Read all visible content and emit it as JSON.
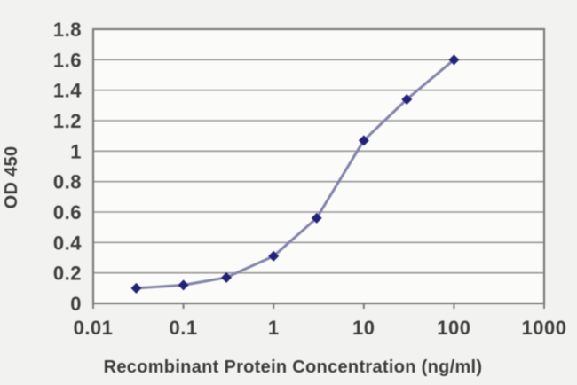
{
  "figure": {
    "background": "#f2f2f0"
  },
  "chart_data": {
    "type": "line",
    "title": "",
    "xlabel": "Recombinant Protein Concentration (ng/ml)",
    "ylabel": "OD 450",
    "x_scale": "log",
    "xlim": [
      0.01,
      1000
    ],
    "ylim": [
      0,
      1.8
    ],
    "x_tick_values": [
      0.01,
      0.1,
      1,
      10,
      100,
      1000
    ],
    "x_tick_labels": [
      "0.01",
      "0.1",
      "1",
      "10",
      "100",
      "1000"
    ],
    "y_tick_values": [
      0,
      0.2,
      0.4,
      0.6,
      0.8,
      1,
      1.2,
      1.4,
      1.6,
      1.8
    ],
    "y_tick_labels": [
      "0",
      "0.2",
      "0.4",
      "0.6",
      "0.8",
      "1",
      "1.2",
      "1.4",
      "1.6",
      "1.8"
    ],
    "grid": "horizontal",
    "legend": "none",
    "series": [
      {
        "name": "OD 450",
        "marker": "diamond",
        "x": [
          0.03,
          0.1,
          0.3,
          1,
          3,
          10,
          30,
          100
        ],
        "y": [
          0.1,
          0.12,
          0.17,
          0.31,
          0.56,
          1.07,
          1.34,
          1.6
        ],
        "line_color": "#8384ab",
        "marker_color": "#22227a"
      }
    ],
    "colors": {
      "grid": "#969696",
      "axis": "#7d7d7d",
      "text": "#3e3e3e",
      "plot_bg": "#fbfbf9"
    }
  }
}
